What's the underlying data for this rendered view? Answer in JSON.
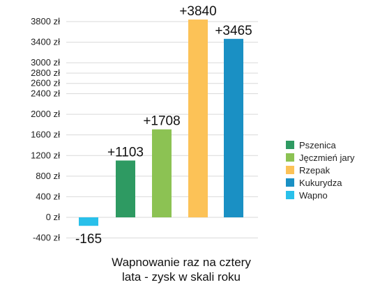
{
  "chart_data": {
    "type": "bar",
    "title": "Wapnowanie raz na cztery lata - zysk w skali roku",
    "title_lines": [
      "Wapnowanie raz na cztery",
      "lata - zysk w skali roku"
    ],
    "categories": [
      "Wapno",
      "Pszenica",
      "Jęczmień jary",
      "Rzepak",
      "Kukurydza"
    ],
    "values": [
      -165,
      1103,
      1708,
      3840,
      3465
    ],
    "data_labels": [
      "-165",
      "+1103",
      "+1708",
      "+3840",
      "+3465"
    ],
    "colors": [
      "#29c0ea",
      "#2e9a62",
      "#8cc253",
      "#fcc257",
      "#1a90c4"
    ],
    "ylim": [
      -400,
      3800
    ],
    "yticks": [
      -400,
      0,
      400,
      800,
      1200,
      1600,
      2000,
      2400,
      2600,
      2800,
      3000,
      3400,
      3800
    ],
    "ytick_labels": [
      "-400 zł",
      "0 zł",
      "400 zł",
      "800 zł",
      "1200 zł",
      "1600 zł",
      "2000 zł",
      "2400 zł",
      "2600 zł",
      "2800 zł",
      "3000 zł",
      "3400 zł",
      "3800 zł"
    ],
    "legend": [
      "Pszenica",
      "Jęczmień jary",
      "Rzepak",
      "Kukurydza",
      "Wapno"
    ],
    "legend_colors": [
      "#2e9a62",
      "#8cc253",
      "#fcc257",
      "#1a90c4",
      "#29c0ea"
    ],
    "legend_placement": "right",
    "grid": true,
    "xlabel": "",
    "ylabel": ""
  }
}
